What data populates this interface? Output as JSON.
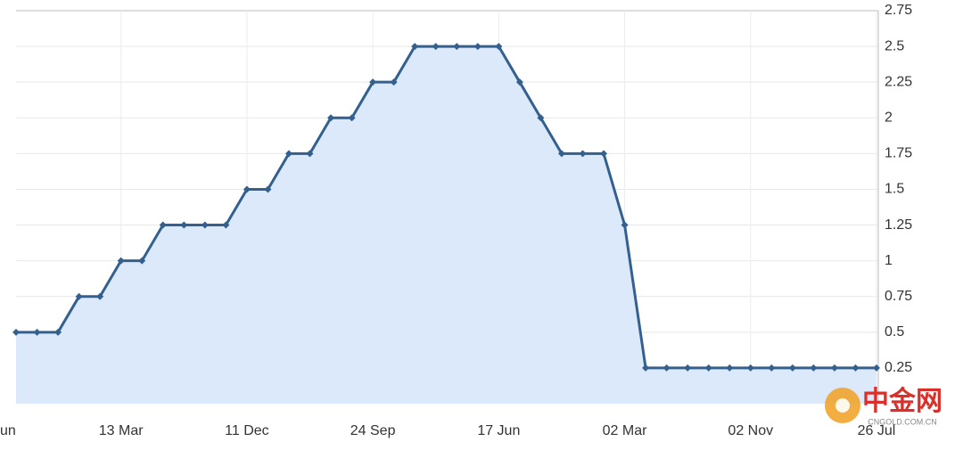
{
  "chart_data": {
    "type": "area",
    "categories": [
      "un",
      null,
      null,
      null,
      null,
      "13 Mar",
      null,
      null,
      null,
      null,
      null,
      "11 Dec",
      null,
      null,
      null,
      null,
      null,
      "24 Sep",
      null,
      null,
      null,
      null,
      null,
      "17 Jun",
      null,
      null,
      null,
      null,
      null,
      "02 Mar",
      null,
      null,
      null,
      null,
      null,
      "02 Nov",
      null,
      null,
      null,
      null,
      null,
      "26 Jul"
    ],
    "values": [
      0.5,
      0.5,
      0.5,
      0.75,
      0.75,
      1,
      1,
      1.25,
      1.25,
      1.25,
      1.25,
      1.5,
      1.5,
      1.75,
      1.75,
      2,
      2,
      2.25,
      2.25,
      2.5,
      2.5,
      2.5,
      2.5,
      2.5,
      2.25,
      2,
      1.75,
      1.75,
      1.75,
      1.25,
      0.25,
      0.25,
      0.25,
      0.25,
      0.25,
      0.25,
      0.25,
      0.25,
      0.25,
      0.25,
      0.25,
      0.25
    ],
    "color": "#33608f",
    "fill_color": "#dce9fa",
    "ylim": [
      0,
      2.75
    ],
    "yticks": [
      0.25,
      0.5,
      0.75,
      1,
      1.25,
      1.5,
      1.75,
      2,
      2.25,
      2.5,
      2.75
    ],
    "grid": true,
    "watermark": {
      "title": "中金网",
      "url": "CNGOLD.COM.CN"
    }
  }
}
